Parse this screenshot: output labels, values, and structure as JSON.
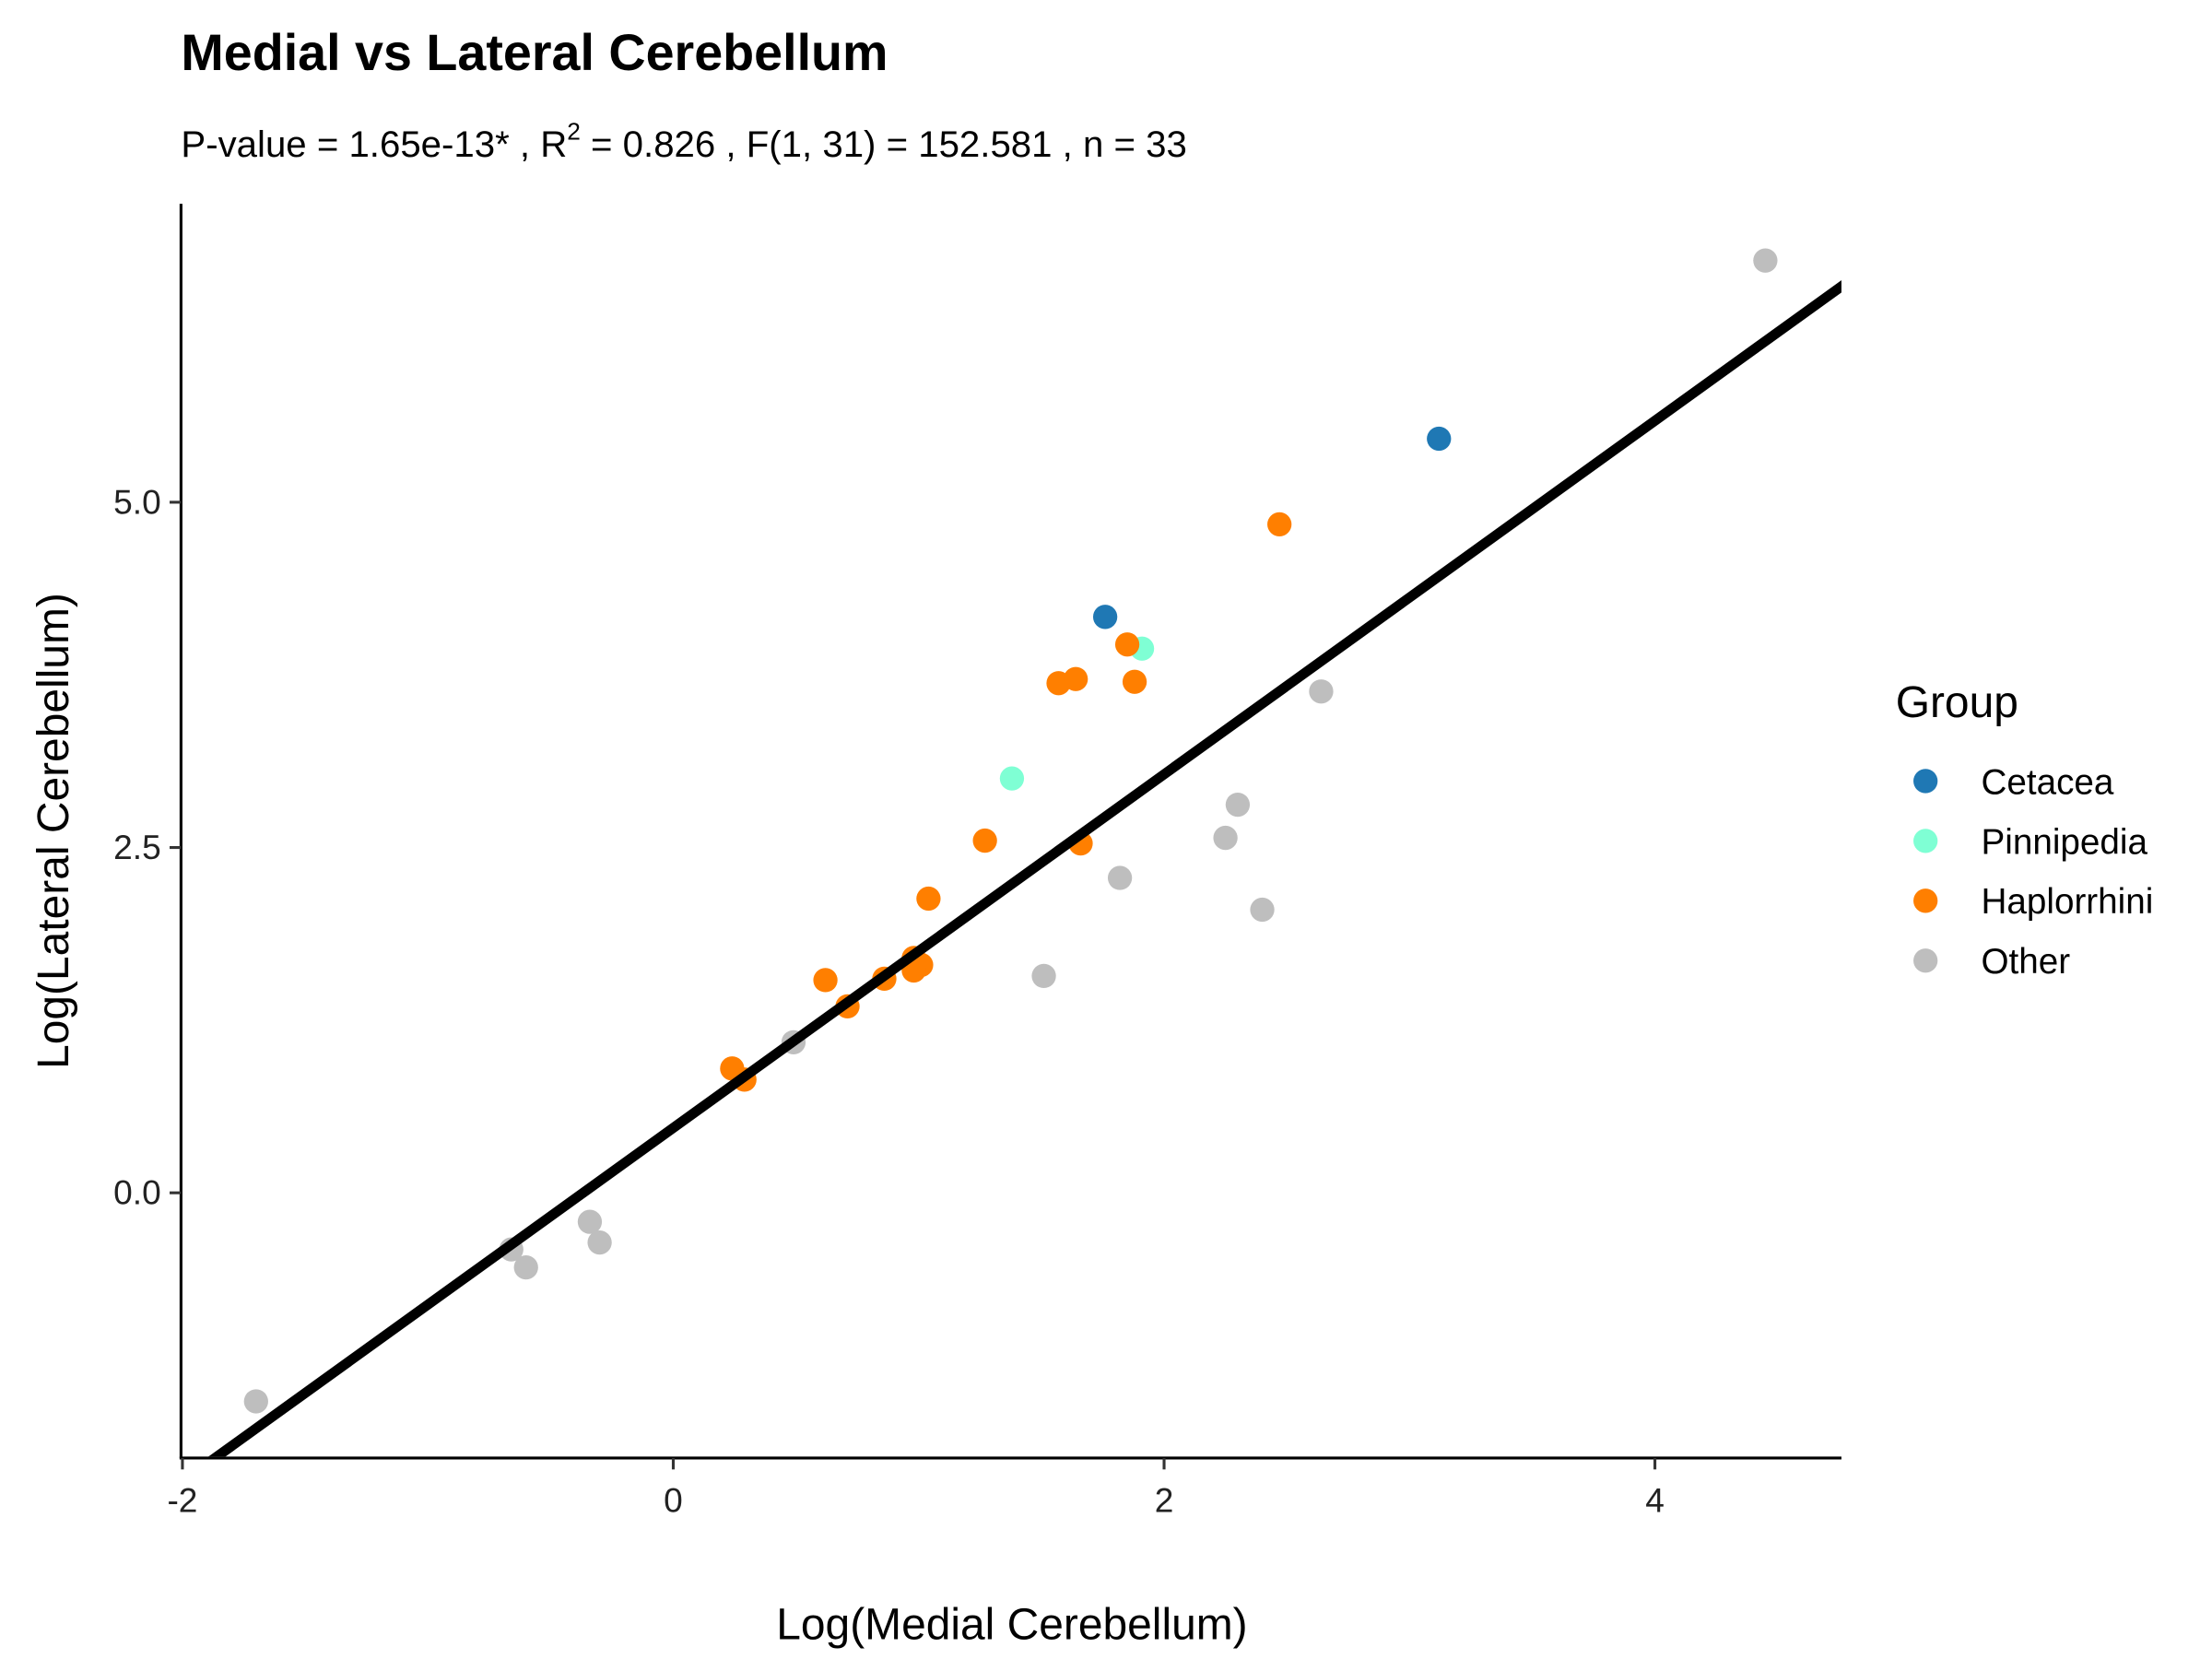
{
  "chart_data": {
    "type": "scatter",
    "title": "Medial vs Lateral Cerebellum",
    "subtitle_parts": [
      "P-value = 1.65e-13* , R",
      "2",
      " = 0.826 , F(1, 31) = 152.581 , n = 33"
    ],
    "xlabel": "Log(Medial Cerebellum)",
    "ylabel": "Log(Lateral Cerebellum)",
    "xlim": [
      -2.0,
      4.76
    ],
    "ylim": [
      -1.91,
      7.14
    ],
    "xticks": [
      -2,
      0,
      2,
      4
    ],
    "xtick_labels": [
      "-2",
      "0",
      "2",
      "4"
    ],
    "yticks": [
      0.0,
      2.5,
      5.0
    ],
    "ytick_labels": [
      "0.0",
      "2.5",
      "5.0"
    ],
    "grid": false,
    "legend": {
      "title": "Group",
      "position": "right"
    },
    "fit_line": {
      "slope": 1.28,
      "intercept": 0.47,
      "color": "#000000"
    },
    "series": [
      {
        "name": "Cetacea",
        "color": "#1F78B4",
        "points": [
          [
            3.12,
            5.46
          ],
          [
            1.76,
            4.17
          ]
        ]
      },
      {
        "name": "Pinnipedia",
        "color": "#7FFFD4",
        "points": [
          [
            1.91,
            3.94
          ],
          [
            1.38,
            3.0
          ]
        ]
      },
      {
        "name": "Haplorrhini",
        "color": "#FF7F00",
        "points": [
          [
            2.47,
            4.84
          ],
          [
            1.88,
            3.7
          ],
          [
            1.57,
            3.69
          ],
          [
            1.64,
            3.72
          ],
          [
            1.85,
            3.97
          ],
          [
            1.27,
            2.55
          ],
          [
            1.66,
            2.53
          ],
          [
            1.04,
            2.13
          ],
          [
            0.62,
            1.54
          ],
          [
            0.86,
            1.55
          ],
          [
            0.71,
            1.35
          ],
          [
            0.98,
            1.7
          ],
          [
            1.01,
            1.65
          ],
          [
            0.98,
            1.61
          ],
          [
            0.24,
            0.9
          ],
          [
            0.29,
            0.82
          ]
        ]
      },
      {
        "name": "Other",
        "color": "#BEBEBE",
        "points": [
          [
            4.45,
            6.75
          ],
          [
            2.64,
            3.63
          ],
          [
            2.3,
            2.81
          ],
          [
            2.25,
            2.57
          ],
          [
            2.4,
            2.05
          ],
          [
            1.82,
            2.28
          ],
          [
            1.51,
            1.57
          ],
          [
            0.49,
            1.09
          ],
          [
            -0.34,
            -0.21
          ],
          [
            -0.3,
            -0.36
          ],
          [
            -0.66,
            -0.41
          ],
          [
            -0.6,
            -0.54
          ],
          [
            -1.7,
            -1.51
          ]
        ]
      }
    ]
  }
}
